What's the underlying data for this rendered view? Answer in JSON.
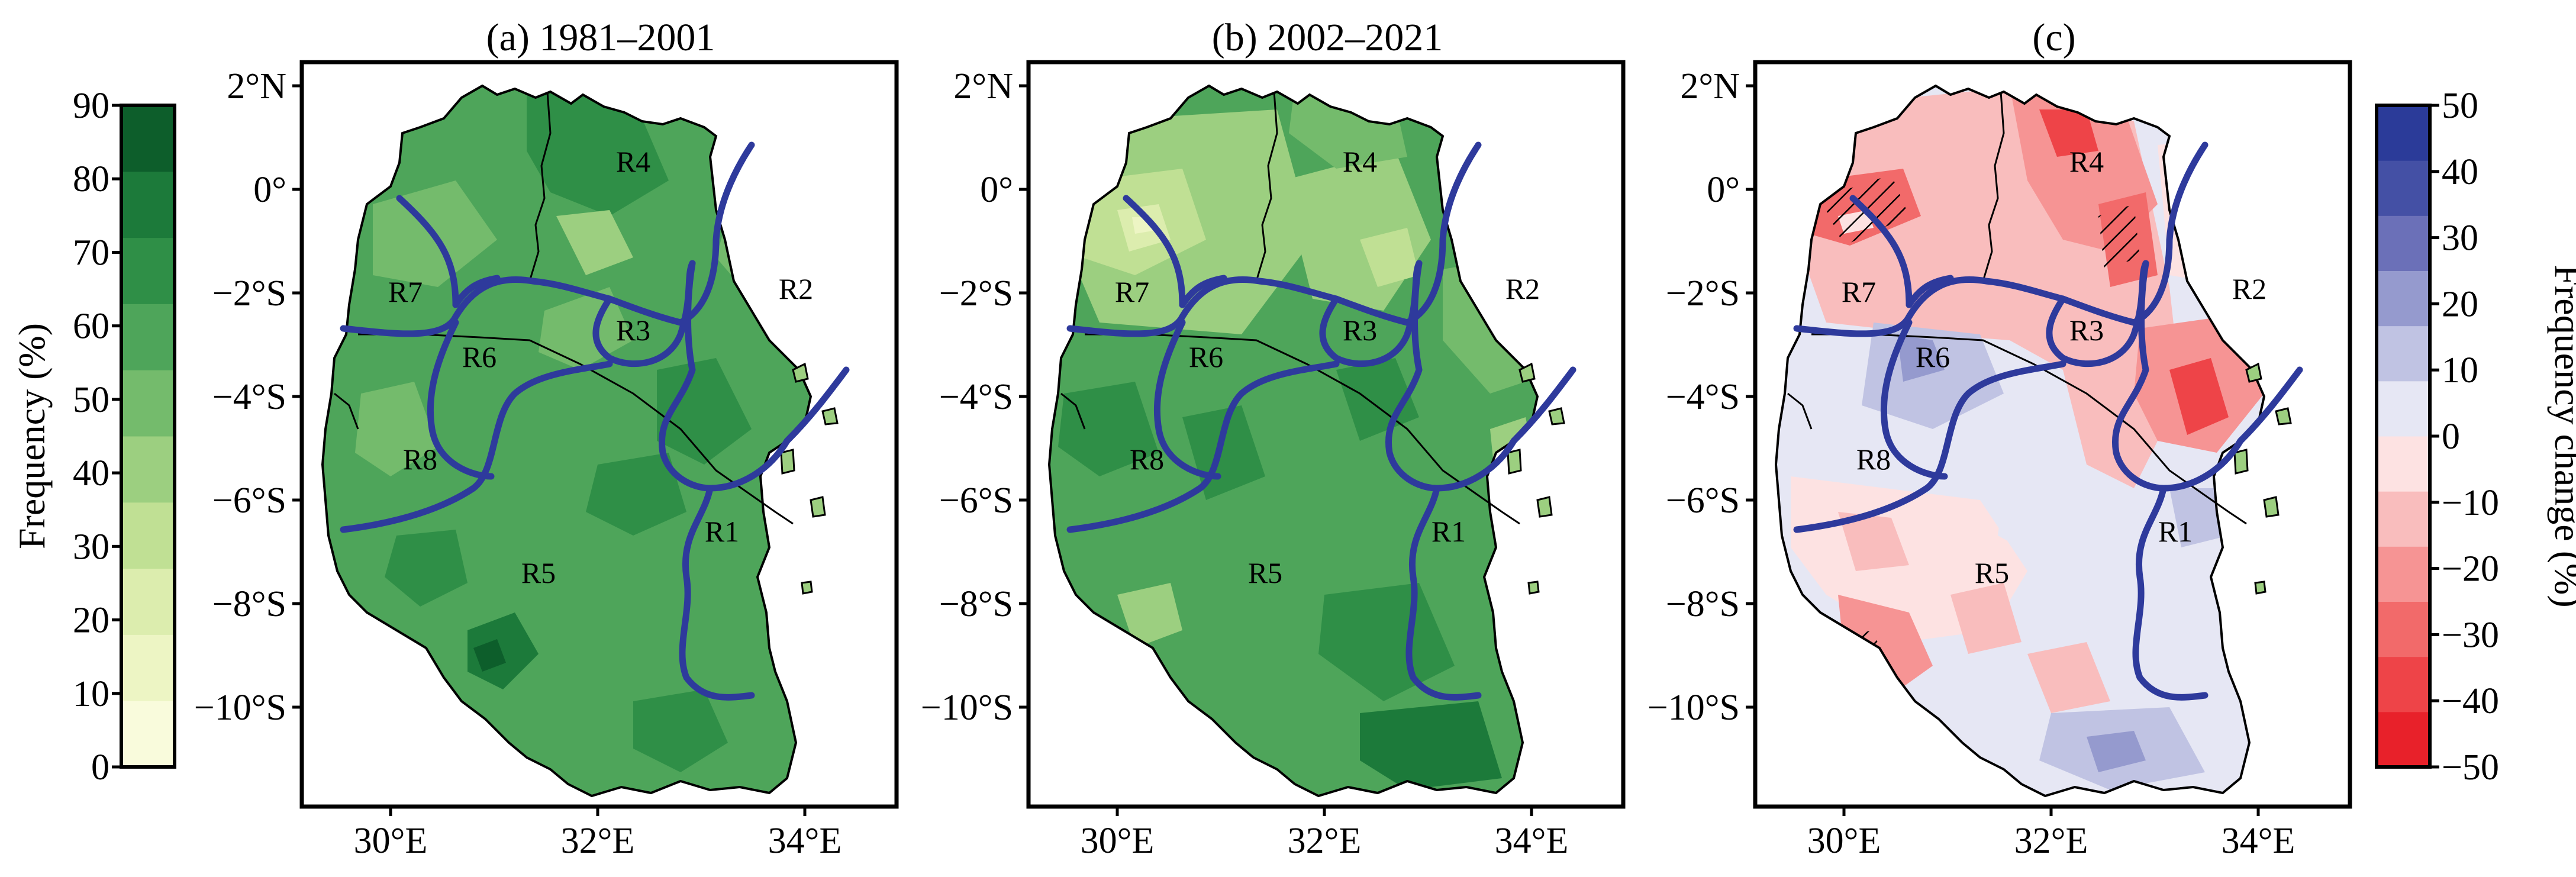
{
  "figure": {
    "panels": [
      {
        "id": "a",
        "title": "(a) 1981–2001",
        "lat_ticks": [
          "2°N",
          "0°",
          "−2°S",
          "−4°S",
          "−6°S",
          "−8°S",
          "−10°S"
        ],
        "lon_ticks": [
          "30°E",
          "32°E",
          "34°E"
        ],
        "regions": [
          "R1",
          "R2",
          "R3",
          "R4",
          "R5",
          "R6",
          "R7",
          "R8"
        ],
        "field": "frequency"
      },
      {
        "id": "b",
        "title": "(b) 2002–2021",
        "lat_ticks": [
          "2°N",
          "0°",
          "−2°S",
          "−4°S",
          "−6°S",
          "−8°S",
          "−10°S"
        ],
        "lon_ticks": [
          "30°E",
          "32°E",
          "34°E"
        ],
        "regions": [
          "R1",
          "R2",
          "R3",
          "R4",
          "R5",
          "R6",
          "R7",
          "R8"
        ],
        "field": "frequency"
      },
      {
        "id": "c",
        "title": "(c)",
        "lat_ticks": [
          "2°N",
          "0°",
          "−2°S",
          "−4°S",
          "−6°S",
          "−8°S",
          "−10°S"
        ],
        "lon_ticks": [
          "30°E",
          "32°E",
          "34°E"
        ],
        "regions": [
          "R1",
          "R2",
          "R3",
          "R4",
          "R5",
          "R6",
          "R7",
          "R8"
        ],
        "field": "change"
      }
    ],
    "colorbar_frequency": {
      "label": "Frequency (%)",
      "ticks": [
        "90",
        "80",
        "70",
        "60",
        "50",
        "40",
        "30",
        "20",
        "10",
        "0"
      ],
      "colors": [
        "#f9fbdc",
        "#edf5c4",
        "#dcedae",
        "#c0e094",
        "#9ccf80",
        "#74bb6c",
        "#4ea55a",
        "#2f8f47",
        "#1c7a3a",
        "#0d5e2b"
      ]
    },
    "colorbar_change": {
      "label": "Frequency change (%)",
      "ticks": [
        "50",
        "40",
        "30",
        "20",
        "10",
        "0",
        "−10",
        "−20",
        "−30",
        "−40",
        "−50"
      ],
      "colors": [
        "#e8212a",
        "#ee4448",
        "#f26a6a",
        "#f69494",
        "#f9bdbd",
        "#fde2e2",
        "#e6e7f4",
        "#c0c3e3",
        "#959ace",
        "#6b70b8",
        "#4450a5",
        "#2b3b99"
      ]
    }
  }
}
